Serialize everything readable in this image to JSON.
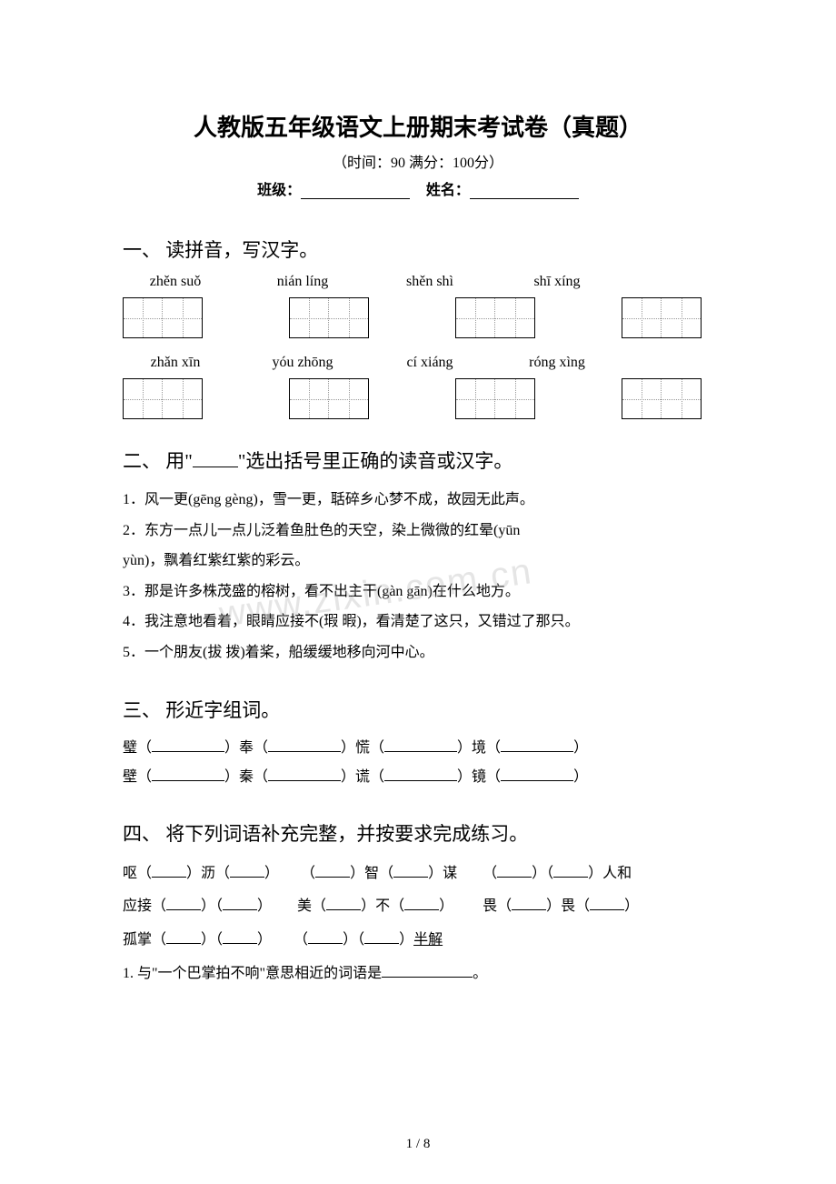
{
  "title": "人教版五年级语文上册期末考试卷（真题）",
  "subtitle": "（时间：90    满分：100分）",
  "info_class": "班级：",
  "info_name": "姓名：",
  "sections": {
    "s1": {
      "heading": "一、  读拼音，写汉字。"
    },
    "s2": {
      "heading_pre": "二、  用\"",
      "heading_post": "\"选出括号里正确的读音或汉字。"
    },
    "s3": {
      "heading": "三、  形近字组词。"
    },
    "s4": {
      "heading": "四、  将下列词语补充完整，并按要求完成练习。"
    }
  },
  "pinyin": {
    "row1": [
      "zhěn suǒ",
      "nián líng",
      "shěn shì",
      "shī xíng"
    ],
    "row2": [
      "zhǎn xīn",
      "yóu zhōng",
      "cí xiáng",
      "róng xìng"
    ]
  },
  "q2": {
    "l1": "1．风一更(gēng    gèng)，雪一更，聒碎乡心梦不成，故园无此声。",
    "l2a": "2．东方一点儿一点儿泛着鱼肚色的天空，染上微微的红晕(yūn",
    "l2b": "yùn)，飘着红紫红紫的彩云。",
    "l3": "3．那是许多株茂盛的榕树，看不出主干(gàn    gān)在什么地方。",
    "l4": "4．我注意地看着，眼睛应接不(瑕    暇)，看清楚了这只，又错过了那只。",
    "l5": "5．一个朋友(拔    拨)着桨，船缓缓地移向河中心。"
  },
  "q3": {
    "r1": {
      "a": "璧（",
      "b": "）奉（",
      "c": "）慌（",
      "d": "）境（",
      "e": "）"
    },
    "r2": {
      "a": "壁（",
      "b": "）秦（",
      "c": "）谎（",
      "d": "）镜（",
      "e": "）"
    }
  },
  "q4": {
    "w1a": "呕（",
    "w1b": "）沥（",
    "w1c": "）",
    "w2a": "（",
    "w2b": "）智（",
    "w2c": "）谋",
    "w3a": "（",
    "w3b": "）（",
    "w3c": "）人和",
    "w4a": "应接（",
    "w4b": "）（",
    "w4c": "）",
    "w5a": "美（",
    "w5b": "）不（",
    "w5c": "）",
    "w6a": "畏（",
    "w6b": "）畏（",
    "w6c": "）",
    "w7a": "孤掌（",
    "w7b": "）（",
    "w7c": "）",
    "w8a": "（",
    "w8b": "）（",
    "w8c": "）",
    "w8d": "半解",
    "q1": "1. 与\"一个巴掌拍不响\"意思相近的词语是",
    "q1end": "。"
  },
  "page": "1 / 8"
}
